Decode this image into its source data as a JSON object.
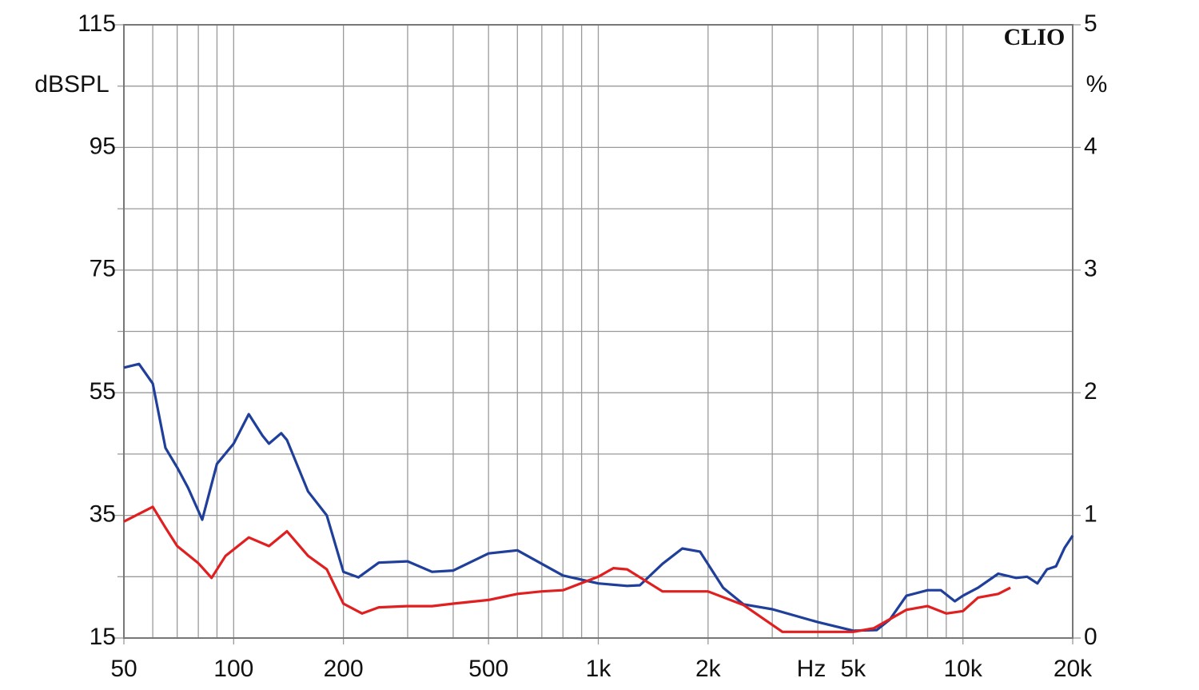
{
  "chart_data": {
    "type": "line",
    "y_label": "dBSPL",
    "y2_label": "%",
    "x_label": "Hz",
    "brand": "CLIO",
    "log_x": true,
    "grid": true,
    "xlim": [
      50,
      20000
    ],
    "xticks": [
      50,
      100,
      200,
      500,
      {
        "value": 1000,
        "label": "1k"
      },
      {
        "value": 2000,
        "label": "2k"
      },
      {
        "value": 5000,
        "label": "5k"
      },
      {
        "value": 10000,
        "label": "10k"
      },
      {
        "value": 20000,
        "label": "20k"
      }
    ],
    "xminor": [
      60,
      70,
      80,
      90,
      300,
      400,
      600,
      700,
      800,
      900,
      3000,
      4000,
      6000,
      7000,
      8000,
      9000
    ],
    "ylim": [
      15,
      115
    ],
    "yticks": [
      15,
      35,
      55,
      75,
      95,
      115
    ],
    "yminor": [
      25,
      45,
      65,
      85,
      105
    ],
    "y2lim": [
      0,
      5
    ],
    "y2ticks": [
      0,
      1,
      2,
      3,
      4,
      5
    ],
    "series": [
      {
        "color": "#1f3f9a",
        "x": [
          50,
          55,
          60,
          65,
          70,
          75,
          82,
          90,
          100,
          110,
          120,
          125,
          135,
          140,
          160,
          180,
          200,
          220,
          250,
          300,
          350,
          400,
          500,
          600,
          700,
          800,
          1000,
          1200,
          1300,
          1500,
          1700,
          1900,
          2200,
          2500,
          3000,
          4000,
          5000,
          5800,
          6300,
          7000,
          8000,
          8700,
          9500,
          10000,
          11000,
          12500,
          14000,
          15000,
          16000,
          17000,
          18000,
          19000,
          20000
        ],
        "values": [
          59.1,
          59.7,
          56.5,
          46.0,
          42.8,
          39.5,
          34.3,
          43.4,
          46.7,
          51.5,
          48.0,
          46.7,
          48.4,
          47.3,
          38.9,
          35.0,
          25.8,
          24.9,
          27.3,
          27.5,
          25.8,
          26.0,
          28.8,
          29.3,
          27.1,
          25.2,
          23.9,
          23.5,
          23.6,
          27.1,
          29.6,
          29.1,
          23.2,
          20.5,
          19.7,
          17.6,
          16.2,
          16.3,
          18.0,
          21.9,
          22.8,
          22.8,
          21.0,
          21.9,
          23.2,
          25.5,
          24.8,
          25.0,
          23.9,
          26.2,
          26.7,
          29.7,
          31.7
        ]
      },
      {
        "color": "#e02020",
        "axis": "y2",
        "x": [
          50,
          60,
          65,
          70,
          80,
          87,
          95,
          110,
          125,
          140,
          160,
          180,
          200,
          225,
          250,
          300,
          350,
          400,
          500,
          600,
          700,
          800,
          1000,
          1100,
          1200,
          1500,
          2000,
          2500,
          3200,
          4000,
          5000,
          5700,
          7000,
          8000,
          9000,
          10000,
          11000,
          12500,
          13500
        ],
        "values": [
          0.95,
          1.07,
          0.9,
          0.75,
          0.61,
          0.49,
          0.67,
          0.82,
          0.75,
          0.87,
          0.67,
          0.56,
          0.28,
          0.2,
          0.25,
          0.26,
          0.26,
          0.28,
          0.31,
          0.36,
          0.38,
          0.39,
          0.5,
          0.57,
          0.56,
          0.38,
          0.38,
          0.27,
          0.05,
          0.05,
          0.05,
          0.08,
          0.23,
          0.26,
          0.2,
          0.22,
          0.33,
          0.36,
          0.41
        ]
      }
    ]
  }
}
